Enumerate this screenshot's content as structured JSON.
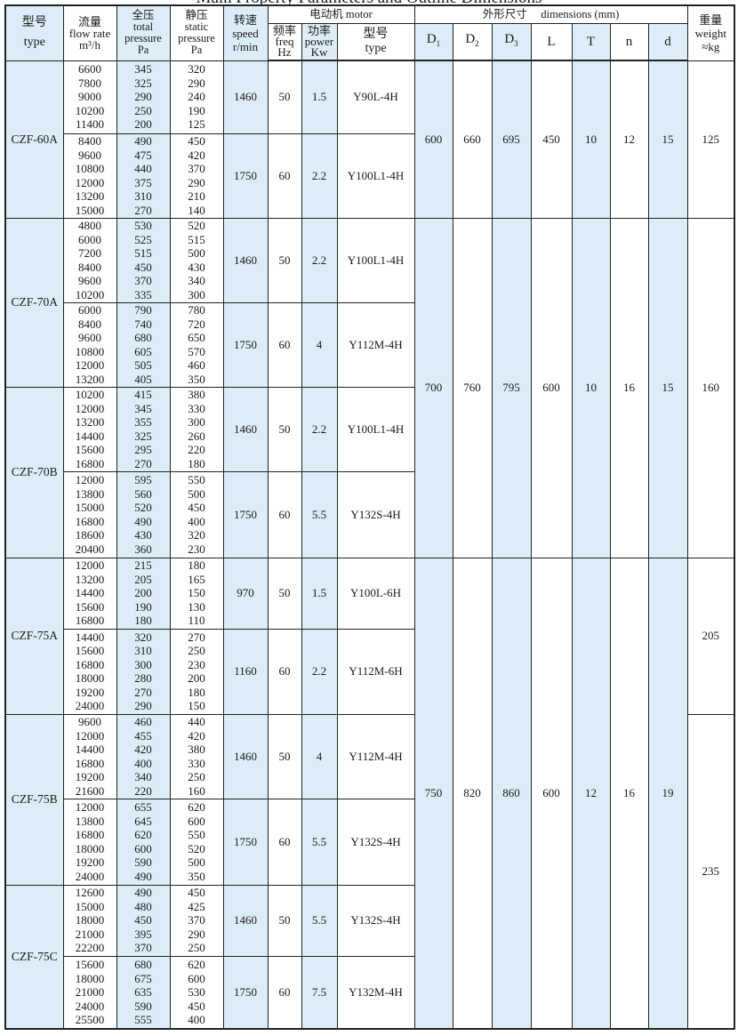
{
  "title": "Main Property Parameters and Outline Dimensions",
  "colors": {
    "shade": "#dcedf7",
    "border": "#222222"
  },
  "headers": {
    "type": "型号\ntype",
    "flow": "流量\nflow rate\nm³/h",
    "total": "全压\ntotal\npressure\nPa",
    "static": "静压\nstatic\npressure\nPa",
    "speed": "转速\nspeed\nr/min",
    "motor": "电动机  motor",
    "freq": "频率\nfreq\nHz",
    "power": "功率\npower\nKw",
    "motor_type": "型号\ntype",
    "dimensions": "外形尺寸     dimensions (mm)",
    "D1": "D1",
    "D2": "D2",
    "D3": "D3",
    "L": "L",
    "T": "T",
    "n": "n",
    "d": "d",
    "weight": "重量\nweight\n≈kg"
  },
  "models": [
    {
      "type": "CZF-60A",
      "motors": [
        {
          "flow": [
            "6600",
            "7800",
            "9000",
            "10200",
            "11400"
          ],
          "total": [
            "345",
            "325",
            "290",
            "250",
            "200"
          ],
          "static": [
            "320",
            "290",
            "240",
            "190",
            "125"
          ],
          "speed": "1460",
          "freq": "50",
          "power": "1.5",
          "motor_type": "Y90L-4H"
        },
        {
          "flow": [
            "8400",
            "9600",
            "10800",
            "12000",
            "13200",
            "15000"
          ],
          "total": [
            "490",
            "475",
            "440",
            "375",
            "310",
            "270"
          ],
          "static": [
            "450",
            "420",
            "370",
            "290",
            "210",
            "140"
          ],
          "speed": "1750",
          "freq": "60",
          "power": "2.2",
          "motor_type": "Y100L1-4H"
        }
      ]
    },
    {
      "type": "CZF-70A",
      "motors": [
        {
          "flow": [
            "4800",
            "6000",
            "7200",
            "8400",
            "9600",
            "10200"
          ],
          "total": [
            "530",
            "525",
            "515",
            "450",
            "370",
            "335"
          ],
          "static": [
            "520",
            "515",
            "500",
            "430",
            "340",
            "300"
          ],
          "speed": "1460",
          "freq": "50",
          "power": "2.2",
          "motor_type": "Y100L1-4H"
        },
        {
          "flow": [
            "6000",
            "8400",
            "9600",
            "10800",
            "12000",
            "13200"
          ],
          "total": [
            "790",
            "740",
            "680",
            "605",
            "505",
            "405"
          ],
          "static": [
            "780",
            "720",
            "650",
            "570",
            "460",
            "350"
          ],
          "speed": "1750",
          "freq": "60",
          "power": "4",
          "motor_type": "Y112M-4H"
        }
      ]
    },
    {
      "type": "CZF-70B",
      "motors": [
        {
          "flow": [
            "10200",
            "12000",
            "13200",
            "14400",
            "15600",
            "16800"
          ],
          "total": [
            "415",
            "345",
            "355",
            "325",
            "295",
            "270"
          ],
          "static": [
            "380",
            "330",
            "300",
            "260",
            "220",
            "180"
          ],
          "speed": "1460",
          "freq": "50",
          "power": "2.2",
          "motor_type": "Y100L1-4H"
        },
        {
          "flow": [
            "12000",
            "13800",
            "15000",
            "16800",
            "18600",
            "20400"
          ],
          "total": [
            "595",
            "560",
            "520",
            "490",
            "430",
            "360"
          ],
          "static": [
            "550",
            "500",
            "450",
            "400",
            "320",
            "230"
          ],
          "speed": "1750",
          "freq": "60",
          "power": "5.5",
          "motor_type": "Y132S-4H"
        }
      ]
    },
    {
      "type": "CZF-75A",
      "motors": [
        {
          "flow": [
            "12000",
            "13200",
            "14400",
            "15600",
            "16800"
          ],
          "total": [
            "215",
            "205",
            "200",
            "190",
            "180"
          ],
          "static": [
            "180",
            "165",
            "150",
            "130",
            "110"
          ],
          "speed": "970",
          "freq": "50",
          "power": "1.5",
          "motor_type": "Y100L-6H"
        },
        {
          "flow": [
            "14400",
            "15600",
            "16800",
            "18000",
            "19200",
            "24000"
          ],
          "total": [
            "320",
            "310",
            "300",
            "280",
            "270",
            "290"
          ],
          "static": [
            "270",
            "250",
            "230",
            "200",
            "180",
            "150"
          ],
          "speed": "1160",
          "freq": "60",
          "power": "2.2",
          "motor_type": "Y112M-6H"
        }
      ]
    },
    {
      "type": "CZF-75B",
      "motors": [
        {
          "flow": [
            "9600",
            "12000",
            "14400",
            "16800",
            "19200",
            "21600"
          ],
          "total": [
            "460",
            "455",
            "420",
            "400",
            "340",
            "220"
          ],
          "static": [
            "440",
            "420",
            "380",
            "330",
            "250",
            "160"
          ],
          "speed": "1460",
          "freq": "50",
          "power": "4",
          "motor_type": "Y112M-4H"
        },
        {
          "flow": [
            "12000",
            "13800",
            "16800",
            "18000",
            "19200",
            "24000"
          ],
          "total": [
            "655",
            "645",
            "620",
            "600",
            "590",
            "490"
          ],
          "static": [
            "620",
            "600",
            "550",
            "520",
            "500",
            "350"
          ],
          "speed": "1750",
          "freq": "60",
          "power": "5.5",
          "motor_type": "Y132S-4H"
        }
      ]
    },
    {
      "type": "CZF-75C",
      "motors": [
        {
          "flow": [
            "12600",
            "15000",
            "18000",
            "21000",
            "22200"
          ],
          "total": [
            "490",
            "480",
            "450",
            "395",
            "370"
          ],
          "static": [
            "450",
            "425",
            "370",
            "290",
            "250"
          ],
          "speed": "1460",
          "freq": "50",
          "power": "5.5",
          "motor_type": "Y132S-4H"
        },
        {
          "flow": [
            "15600",
            "18000",
            "21000",
            "24000",
            "25500"
          ],
          "total": [
            "680",
            "675",
            "635",
            "590",
            "555"
          ],
          "static": [
            "620",
            "600",
            "530",
            "450",
            "400"
          ],
          "speed": "1750",
          "freq": "60",
          "power": "7.5",
          "motor_type": "Y132M-4H"
        }
      ]
    }
  ],
  "dimension_groups": [
    {
      "models": [
        "CZF-60A"
      ],
      "D1": "600",
      "D2": "660",
      "D3": "695",
      "L": "450",
      "T": "10",
      "n": "12",
      "d": "15"
    },
    {
      "models": [
        "CZF-70A",
        "CZF-70B"
      ],
      "D1": "700",
      "D2": "760",
      "D3": "795",
      "L": "600",
      "T": "10",
      "n": "16",
      "d": "15"
    },
    {
      "models": [
        "CZF-75A",
        "CZF-75B",
        "CZF-75C"
      ],
      "D1": "750",
      "D2": "820",
      "D3": "860",
      "L": "600",
      "T": "12",
      "n": "16",
      "d": "19"
    }
  ],
  "weight_groups": [
    {
      "models": [
        "CZF-60A"
      ],
      "weight": "125"
    },
    {
      "models": [
        "CZF-70A",
        "CZF-70B"
      ],
      "weight": "160"
    },
    {
      "models": [
        "CZF-75A"
      ],
      "weight": "205"
    },
    {
      "models": [
        "CZF-75B",
        "CZF-75C"
      ],
      "weight": "235"
    }
  ]
}
